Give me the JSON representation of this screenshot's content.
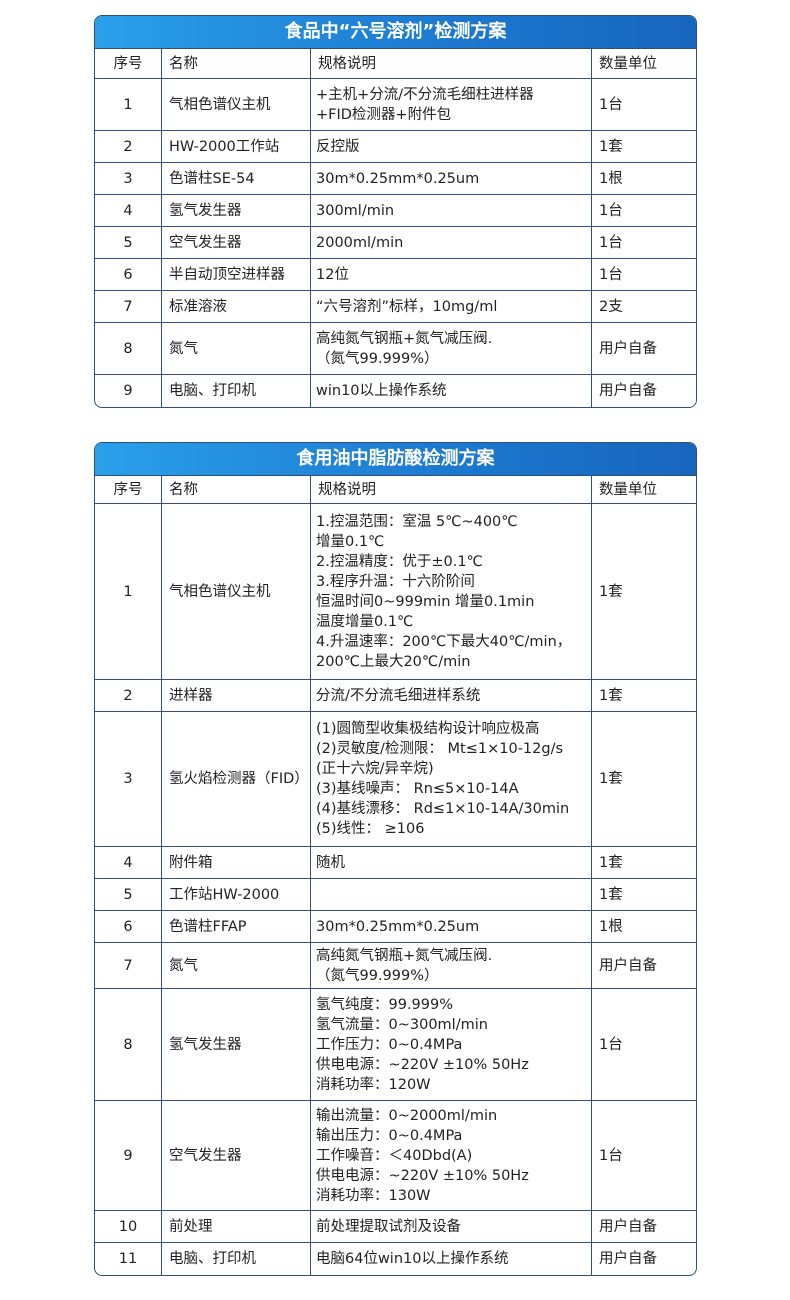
{
  "tables": [
    {
      "title": "食品中“六号溶剂”检测方案",
      "headers": [
        "序号",
        "名称",
        "规格说明",
        "数量单位"
      ],
      "rows": [
        {
          "no": "1",
          "name": "气相色谱仪主机",
          "spec": [
            "+主机+分流/不分流毛细柱进样器",
            "+FID检测器+附件包"
          ],
          "unit": "1台"
        },
        {
          "no": "2",
          "name": "HW-2000工作站",
          "spec": [
            "反控版"
          ],
          "unit": "1套"
        },
        {
          "no": "3",
          "name": "色谱柱SE-54",
          "spec": [
            "30m*0.25mm*0.25um"
          ],
          "unit": "1根"
        },
        {
          "no": "4",
          "name": "氢气发生器",
          "spec": [
            "300ml/min"
          ],
          "unit": "1台"
        },
        {
          "no": "5",
          "name": "空气发生器",
          "spec": [
            "2000ml/min"
          ],
          "unit": "1台"
        },
        {
          "no": "6",
          "name": "半自动顶空进样器",
          "spec": [
            "12位"
          ],
          "unit": "1台"
        },
        {
          "no": "7",
          "name": "标准溶液",
          "spec": [
            "“六号溶剂”标样，10mg/ml"
          ],
          "unit": "2支"
        },
        {
          "no": "8",
          "name": "氮气",
          "spec": [
            "高纯氮气钢瓶+氮气减压阀.",
            "（氮气99.999%）"
          ],
          "unit": "用户自备"
        },
        {
          "no": "9",
          "name": "电脑、打印机",
          "spec": [
            "win10以上操作系统"
          ],
          "unit": "用户自备"
        }
      ]
    },
    {
      "title": "食用油中脂肪酸检测方案",
      "headers": [
        "序号",
        "名称",
        "规格说明",
        "数量单位"
      ],
      "rows": [
        {
          "no": "1",
          "name": "气相色谱仪主机",
          "spec": [
            "1.控温范围：室温 5℃~400℃",
            "增量0.1℃",
            "2.控温精度：优于±0.1℃",
            "3.程序升温：十六阶阶间",
            "恒温时间0~999min 增量0.1min",
            "温度增量0.1℃",
            "4.升温速率：200℃下最大40℃/min，",
            "200℃上最大20℃/min"
          ],
          "unit": "1套"
        },
        {
          "no": "2",
          "name": "进样器",
          "spec": [
            "分流/不分流毛细进样系统"
          ],
          "unit": "1套"
        },
        {
          "no": "3",
          "name": "氢火焰检测器（FID）",
          "spec": [
            "(1)圆筒型收集极结构设计响应极高",
            "(2)灵敏度/检测限： Mt≤1×10-12g/s",
            "(正十六烷/异辛烷)",
            "(3)基线噪声： Rn≤5×10-14A",
            "(4)基线漂移： Rd≤1×10-14A/30min",
            "(5)线性： ≥106"
          ],
          "unit": "1套"
        },
        {
          "no": "4",
          "name": "附件箱",
          "spec": [
            "随机"
          ],
          "unit": "1套"
        },
        {
          "no": "5",
          "name": "工作站HW-2000",
          "spec": [],
          "unit": "1套"
        },
        {
          "no": "6",
          "name": "色谱柱FFAP",
          "spec": [
            "30m*0.25mm*0.25um"
          ],
          "unit": "1根"
        },
        {
          "no": "7",
          "name": "氮气",
          "spec": [
            "高纯氮气钢瓶+氮气减压阀.",
            "（氮气99.999%）"
          ],
          "unit": "用户自备"
        },
        {
          "no": "8",
          "name": "氢气发生器",
          "spec": [
            "氢气纯度：99.999%",
            "氢气流量：0~300ml/min",
            "工作压力：0~0.4MPa",
            "供电电源：~220V ±10% 50Hz",
            "消耗功率：120W"
          ],
          "unit": "1台"
        },
        {
          "no": "9",
          "name": "空气发生器",
          "spec": [
            "输出流量：0~2000ml/min",
            "输出压力：0~0.4MPa",
            "工作噪音：＜40Dbd(A)",
            "供电电源：~220V ±10% 50Hz",
            "消耗功率：130W"
          ],
          "unit": "1台"
        },
        {
          "no": "10",
          "name": "前处理",
          "spec": [
            "前处理提取试剂及设备"
          ],
          "unit": "用户自备"
        },
        {
          "no": "11",
          "name": "电脑、打印机",
          "spec": [
            "电脑64位win10以上操作系统"
          ],
          "unit": "用户自备"
        }
      ]
    }
  ]
}
